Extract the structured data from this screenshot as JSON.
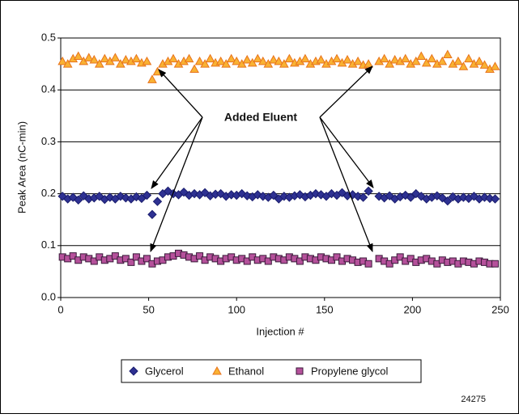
{
  "chart_data": {
    "type": "scatter",
    "ylabel": "Peak Area (nC-min)",
    "xlabel": "Injection #",
    "annotation": "Added Eluent",
    "figure_id": "24275",
    "xlim": [
      0,
      250
    ],
    "xticks": [
      0,
      50,
      100,
      150,
      200,
      250
    ],
    "ylim": [
      0,
      0.5
    ],
    "yticks": [
      {
        "value": 0,
        "label": "0.0"
      },
      0.1,
      0.2,
      0.3,
      0.4,
      0.5
    ],
    "grid": true,
    "x": [
      1,
      4,
      7,
      10,
      13,
      16,
      19,
      22,
      25,
      28,
      31,
      34,
      37,
      40,
      43,
      46,
      49,
      52,
      55,
      58,
      61,
      64,
      67,
      70,
      73,
      76,
      79,
      82,
      85,
      88,
      91,
      94,
      97,
      100,
      103,
      106,
      109,
      112,
      115,
      118,
      121,
      124,
      127,
      130,
      133,
      136,
      139,
      142,
      145,
      148,
      151,
      154,
      157,
      160,
      163,
      166,
      169,
      172,
      175,
      181,
      184,
      187,
      190,
      193,
      196,
      199,
      202,
      205,
      208,
      211,
      214,
      217,
      220,
      223,
      226,
      229,
      232,
      235,
      238,
      241,
      244,
      247
    ],
    "series": [
      {
        "name": "Glycerol",
        "color": "#2e3192",
        "edge": "#1a1d6e",
        "marker": "diamond",
        "values": [
          0.195,
          0.19,
          0.193,
          0.188,
          0.196,
          0.19,
          0.192,
          0.195,
          0.189,
          0.193,
          0.19,
          0.195,
          0.192,
          0.19,
          0.194,
          0.191,
          0.197,
          0.16,
          0.185,
          0.2,
          0.205,
          0.2,
          0.198,
          0.203,
          0.197,
          0.2,
          0.198,
          0.202,
          0.196,
          0.199,
          0.2,
          0.195,
          0.198,
          0.197,
          0.2,
          0.196,
          0.194,
          0.198,
          0.195,
          0.193,
          0.197,
          0.19,
          0.195,
          0.193,
          0.196,
          0.198,
          0.194,
          0.197,
          0.2,
          0.198,
          0.195,
          0.2,
          0.197,
          0.202,
          0.196,
          0.198,
          0.195,
          0.193,
          0.205,
          0.195,
          0.192,
          0.196,
          0.19,
          0.194,
          0.197,
          0.193,
          0.2,
          0.195,
          0.19,
          0.193,
          0.196,
          0.192,
          0.186,
          0.194,
          0.19,
          0.193,
          0.191,
          0.195,
          0.19,
          0.193,
          0.191,
          0.19
        ]
      },
      {
        "name": "Ethanol",
        "color": "#f9b233",
        "edge": "#e8731c",
        "marker": "triangle",
        "values": [
          0.455,
          0.45,
          0.46,
          0.465,
          0.455,
          0.462,
          0.458,
          0.45,
          0.46,
          0.455,
          0.462,
          0.45,
          0.458,
          0.455,
          0.46,
          0.452,
          0.455,
          0.42,
          0.435,
          0.45,
          0.455,
          0.46,
          0.45,
          0.455,
          0.46,
          0.44,
          0.455,
          0.45,
          0.46,
          0.452,
          0.455,
          0.45,
          0.46,
          0.455,
          0.45,
          0.458,
          0.452,
          0.46,
          0.455,
          0.45,
          0.458,
          0.455,
          0.45,
          0.46,
          0.452,
          0.455,
          0.46,
          0.45,
          0.455,
          0.458,
          0.45,
          0.455,
          0.46,
          0.452,
          0.458,
          0.45,
          0.455,
          0.448,
          0.45,
          0.455,
          0.46,
          0.45,
          0.458,
          0.455,
          0.46,
          0.45,
          0.455,
          0.465,
          0.452,
          0.46,
          0.45,
          0.455,
          0.468,
          0.45,
          0.455,
          0.445,
          0.46,
          0.45,
          0.455,
          0.448,
          0.44,
          0.445
        ]
      },
      {
        "name": "Propylene glycol",
        "color": "#b5519b",
        "edge": "#3a1a3a",
        "marker": "square",
        "values": [
          0.078,
          0.075,
          0.08,
          0.072,
          0.078,
          0.075,
          0.07,
          0.078,
          0.072,
          0.075,
          0.08,
          0.072,
          0.075,
          0.068,
          0.078,
          0.07,
          0.075,
          0.065,
          0.07,
          0.072,
          0.078,
          0.08,
          0.085,
          0.082,
          0.078,
          0.075,
          0.08,
          0.072,
          0.078,
          0.075,
          0.07,
          0.075,
          0.078,
          0.072,
          0.075,
          0.07,
          0.078,
          0.072,
          0.075,
          0.07,
          0.078,
          0.075,
          0.072,
          0.078,
          0.075,
          0.07,
          0.078,
          0.075,
          0.072,
          0.078,
          0.075,
          0.072,
          0.078,
          0.07,
          0.075,
          0.072,
          0.068,
          0.07,
          0.065,
          0.075,
          0.07,
          0.065,
          0.072,
          0.078,
          0.07,
          0.075,
          0.068,
          0.072,
          0.075,
          0.07,
          0.065,
          0.072,
          0.068,
          0.07,
          0.065,
          0.07,
          0.068,
          0.065,
          0.07,
          0.068,
          0.065,
          0.065
        ]
      }
    ]
  }
}
